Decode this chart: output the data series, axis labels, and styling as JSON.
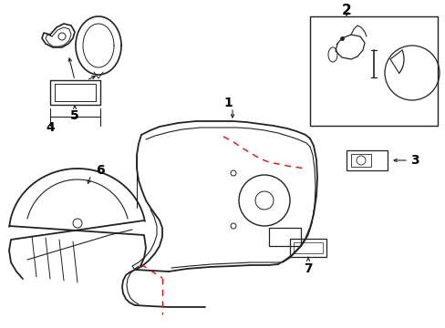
{
  "bg_color": "#ffffff",
  "line_color": "#222222",
  "red_dash_color": "#ff0000",
  "label_color": "#000000",
  "figsize": [
    4.89,
    3.6
  ],
  "dpi": 100
}
